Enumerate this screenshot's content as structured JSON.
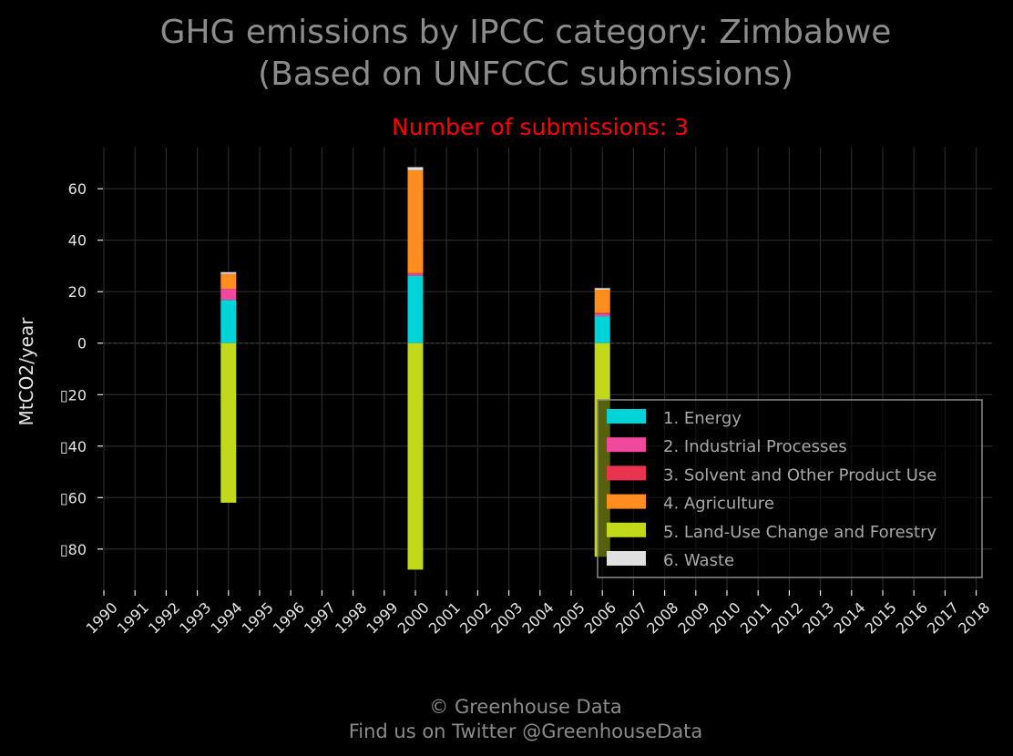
{
  "title_line1": "GHG emissions by IPCC category: Zimbabwe",
  "title_line2": "(Based on UNFCCC submissions)",
  "subtitle": "Number of submissions: 3",
  "footer_line1": "© Greenhouse Data",
  "footer_line2": "Find us on Twitter @GreenhouseData",
  "colors": {
    "background": "#000000",
    "grid": "#2a2a2a",
    "title": "#8c8c8c",
    "subtitle": "#ff0000"
  },
  "chart_data": {
    "type": "bar",
    "stacked": true,
    "ylabel": "MtCO2/year",
    "xlabel": "",
    "ylim": [
      -96,
      76
    ],
    "yticks": [
      -80,
      -60,
      -40,
      -20,
      0,
      20,
      40,
      60
    ],
    "ytick_labels": [
      "▯80",
      "▯60",
      "▯40",
      "▯20",
      "0",
      "20",
      "40",
      "60"
    ],
    "categories": [
      "1990",
      "1991",
      "1992",
      "1993",
      "1994",
      "1995",
      "1996",
      "1997",
      "1998",
      "1999",
      "2000",
      "2001",
      "2002",
      "2003",
      "2004",
      "2005",
      "2006",
      "2007",
      "2008",
      "2009",
      "2010",
      "2011",
      "2012",
      "2013",
      "2014",
      "2015",
      "2016",
      "2017",
      "2018"
    ],
    "grid": true,
    "legend_position": "lower-right",
    "series": [
      {
        "name": "1. Energy",
        "color": "#00d4d8",
        "values": {
          "1994": 16.8,
          "2000": 26.2,
          "2006": 10.5
        }
      },
      {
        "name": "2. Industrial Processes",
        "color": "#f0489c",
        "values": {
          "1994": 4.3,
          "2000": 0.9,
          "2006": 1.0
        }
      },
      {
        "name": "3. Solvent and Other Product Use",
        "color": "#e8344e",
        "values": {
          "1994": 0.0,
          "2000": 0.1,
          "2006": 0.2
        }
      },
      {
        "name": "4. Agriculture",
        "color": "#ff8c1e",
        "values": {
          "1994": 5.8,
          "2000": 40.0,
          "2006": 9.1
        }
      },
      {
        "name": "5. Land-Use Change and Forestry",
        "color": "#c2d81a",
        "values": {
          "1994": -62.0,
          "2000": -88.0,
          "2006": -83.0
        }
      },
      {
        "name": "6. Waste",
        "color": "#e0e0e0",
        "values": {
          "1994": 0.7,
          "2000": 1.2,
          "2006": 0.6
        }
      }
    ]
  }
}
